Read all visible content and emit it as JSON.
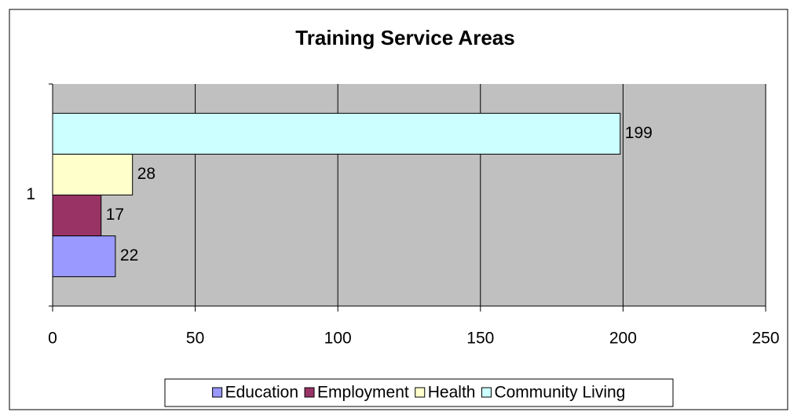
{
  "chart_data": {
    "type": "bar",
    "orientation": "horizontal",
    "title": "Training Service Areas",
    "categories": [
      "1"
    ],
    "series": [
      {
        "name": "Education",
        "color": "#9999ff",
        "values": [
          22
        ]
      },
      {
        "name": "Employment",
        "color": "#993366",
        "values": [
          17
        ]
      },
      {
        "name": "Health",
        "color": "#ffffcc",
        "values": [
          28
        ]
      },
      {
        "name": "Community Living",
        "color": "#ccffff",
        "values": [
          199
        ]
      }
    ],
    "xlim": [
      0,
      250
    ],
    "xticks": [
      0,
      50,
      100,
      150,
      200,
      250
    ],
    "grid": true,
    "plot_background": "#c0c0c0",
    "legend": "bottom"
  }
}
